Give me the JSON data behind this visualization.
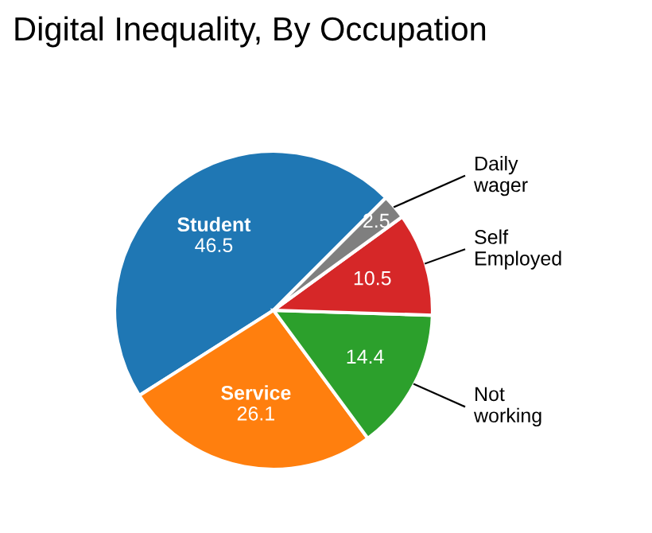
{
  "chart_data": {
    "type": "pie",
    "title": "Digital Inequality, By Occupation",
    "categories": [
      "Student",
      "Service",
      "Not working",
      "Self Employed",
      "Daily wager"
    ],
    "values": [
      46.5,
      26.1,
      14.4,
      10.5,
      2.5
    ],
    "colors": [
      "#1f77b4",
      "#ff7f0e",
      "#2ca02c",
      "#d62728",
      "#7f7f7f"
    ],
    "data_labels": true,
    "legend": false
  }
}
